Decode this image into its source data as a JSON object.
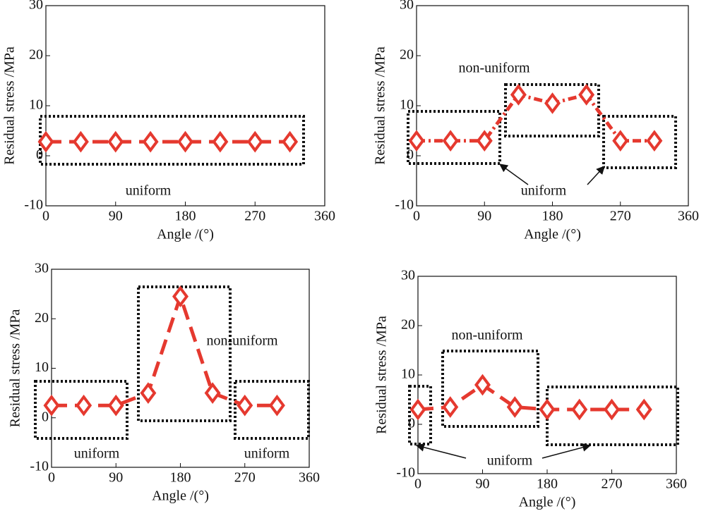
{
  "chart_data": [
    {
      "type": "line",
      "xlabel": "Angle /(°)",
      "ylabel": "Residual stress /MPa",
      "x": [
        0,
        45,
        90,
        135,
        180,
        225,
        270,
        315
      ],
      "series": [
        {
          "color": "#e5392f",
          "linestyle": "dashed",
          "values": [
            2.8,
            2.8,
            2.8,
            2.8,
            2.8,
            2.8,
            2.8,
            2.8
          ]
        }
      ],
      "xlim": [
        0,
        360
      ],
      "xticks": [
        0,
        90,
        180,
        270,
        360
      ],
      "ylim": [
        -10,
        30
      ],
      "yticks": [
        -10,
        0,
        10,
        20,
        30
      ],
      "annotations": [
        "uniform"
      ]
    },
    {
      "type": "line",
      "xlabel": "Angle /(°)",
      "ylabel": "Residual stress /MPa",
      "x": [
        0,
        45,
        90,
        135,
        180,
        225,
        270,
        315
      ],
      "series": [
        {
          "color": "#e5392f",
          "linestyle": "dashdot",
          "values": [
            3,
            3,
            3,
            12.2,
            10.5,
            12.2,
            3,
            3
          ]
        }
      ],
      "xlim": [
        0,
        360
      ],
      "xticks": [
        0,
        90,
        180,
        270,
        360
      ],
      "ylim": [
        -10,
        30
      ],
      "yticks": [
        -10,
        0,
        10,
        20,
        30
      ],
      "annotations": [
        "non-uniform",
        "uniform"
      ]
    },
    {
      "type": "line",
      "xlabel": "Angle /(°)",
      "ylabel": "Residual stress /MPa",
      "x": [
        0,
        45,
        90,
        135,
        180,
        225,
        270,
        315
      ],
      "series": [
        {
          "color": "#e5392f",
          "linestyle": "dashed",
          "values": [
            2.5,
            2.5,
            2.5,
            5,
            24.5,
            5,
            2.5,
            2.5
          ]
        }
      ],
      "xlim": [
        0,
        360
      ],
      "xticks": [
        0,
        90,
        180,
        270,
        360
      ],
      "ylim": [
        -10,
        30
      ],
      "yticks": [
        -10,
        0,
        10,
        20,
        30
      ],
      "annotations": [
        "non-uniform",
        "uniform",
        "uniform"
      ]
    },
    {
      "type": "line",
      "xlabel": "Angle /(°)",
      "ylabel": "Residual stress /MPa",
      "x": [
        0,
        45,
        90,
        135,
        180,
        225,
        270,
        315
      ],
      "series": [
        {
          "color": "#e5392f",
          "linestyle": "dashed",
          "values": [
            3,
            3.5,
            8,
            3.5,
            3,
            3,
            3,
            3
          ]
        }
      ],
      "xlim": [
        0,
        360
      ],
      "xticks": [
        0,
        90,
        180,
        270,
        360
      ],
      "ylim": [
        -10,
        30
      ],
      "yticks": [
        -10,
        0,
        10,
        20,
        30
      ],
      "annotations": [
        "non-uniform",
        "uniform"
      ]
    }
  ]
}
